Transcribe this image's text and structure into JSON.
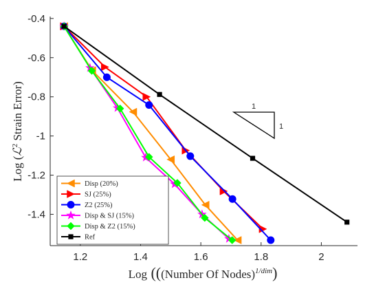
{
  "chart_data": {
    "type": "line",
    "title": "",
    "xlabel": "Log  ((Number Of Nodes)^{1/dim})",
    "xlabel_parts": {
      "prefix": "Log",
      "inner": "(Number Of Nodes)",
      "exponent": "1/dim"
    },
    "ylabel": "Log (ℒ² Strain Error)",
    "ylabel_parts": {
      "prefix": "Log",
      "script_l": "ℒ",
      "sup": "2",
      "rest": "Strain Error"
    },
    "xlim": [
      1.1,
      2.12
    ],
    "ylim": [
      -1.56,
      -0.39
    ],
    "xticks": [
      1.2,
      1.4,
      1.6,
      1.8,
      2
    ],
    "xtick_labels": [
      "1.2",
      "1.4",
      "1.6",
      "1.8",
      "2"
    ],
    "yticks": [
      -0.4,
      -0.6,
      -0.8,
      -1,
      -1.2,
      -1.4
    ],
    "ytick_labels": [
      "-0.4",
      "-0.6",
      "-0.8",
      "-1",
      "-1.2",
      "-1.4"
    ],
    "grid": false,
    "legend_position": "bottom-left",
    "slope_triangle": {
      "run_label": "1",
      "rise_label": "1"
    },
    "series": [
      {
        "name": "Disp (20%)",
        "color": "#ff8c00",
        "marker": "triangle-left",
        "x": [
          1.146,
          1.239,
          1.375,
          1.5,
          1.615,
          1.722
        ],
        "y": [
          -0.44,
          -0.665,
          -0.877,
          -1.12,
          -1.352,
          -1.532
        ]
      },
      {
        "name": "SJ (25%)",
        "color": "#ff0000",
        "marker": "triangle-right",
        "x": [
          1.146,
          1.282,
          1.42,
          1.55,
          1.676,
          1.806
        ],
        "y": [
          -0.44,
          -0.648,
          -0.8,
          -1.074,
          -1.282,
          -1.475
        ]
      },
      {
        "name": "Z2 (25%)",
        "color": "#0000ff",
        "marker": "circle",
        "x": [
          1.146,
          1.288,
          1.428,
          1.565,
          1.705,
          1.832
        ],
        "y": [
          -0.44,
          -0.7,
          -0.842,
          -1.103,
          -1.322,
          -1.532
        ]
      },
      {
        "name": "Disp & SJ (15%)",
        "color": "#ff00ff",
        "marker": "star",
        "x": [
          1.146,
          1.232,
          1.323,
          1.417,
          1.513,
          1.604,
          1.693
        ],
        "y": [
          -0.44,
          -0.652,
          -0.857,
          -1.11,
          -1.246,
          -1.4,
          -1.525
        ]
      },
      {
        "name": "Disp & Z2 (15%)",
        "color": "#00ff00",
        "marker": "diamond",
        "x": [
          1.146,
          1.238,
          1.332,
          1.428,
          1.522,
          1.613,
          1.704
        ],
        "y": [
          -0.44,
          -0.667,
          -0.86,
          -1.107,
          -1.24,
          -1.418,
          -1.532
        ]
      },
      {
        "name": "Ref",
        "color": "#000000",
        "marker": "square",
        "x": [
          1.146,
          1.463,
          1.772,
          2.085
        ],
        "y": [
          -0.44,
          -0.788,
          -1.114,
          -1.44
        ]
      }
    ]
  }
}
